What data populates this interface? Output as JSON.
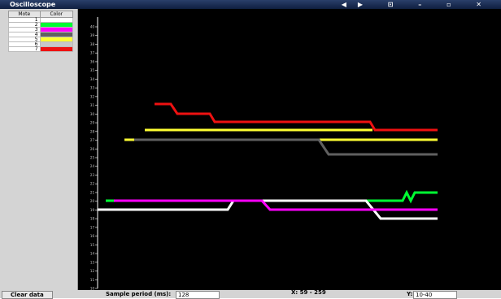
{
  "window": {
    "title": "Oscilloscope"
  },
  "mote_table": {
    "headers": [
      "Mote",
      "Color"
    ],
    "rows": [
      {
        "mote": "1",
        "color": "#ffffff"
      },
      {
        "mote": "2",
        "color": "#00ff33"
      },
      {
        "mote": "3",
        "color": "#ff00ff"
      },
      {
        "mote": "4",
        "color": "#606060"
      },
      {
        "mote": "5",
        "color": "#ffff33"
      },
      {
        "mote": "6",
        "color": "#c8c8c8"
      },
      {
        "mote": "7",
        "color": "#ee1111"
      }
    ]
  },
  "plot": {
    "yticks": [
      40,
      39,
      38,
      37,
      36,
      35,
      34,
      33,
      32,
      31,
      30,
      29,
      28,
      27,
      26,
      25,
      24,
      23,
      22,
      21,
      20,
      19,
      18,
      17,
      16,
      15,
      14,
      13,
      12,
      11,
      10
    ]
  },
  "controls": {
    "clear_button": "Clear data",
    "sample_label": "Sample period (ms):",
    "sample_value": "128",
    "x_range": "X: 59 - 259",
    "y_label": "Y:",
    "y_value": "10-40"
  }
}
